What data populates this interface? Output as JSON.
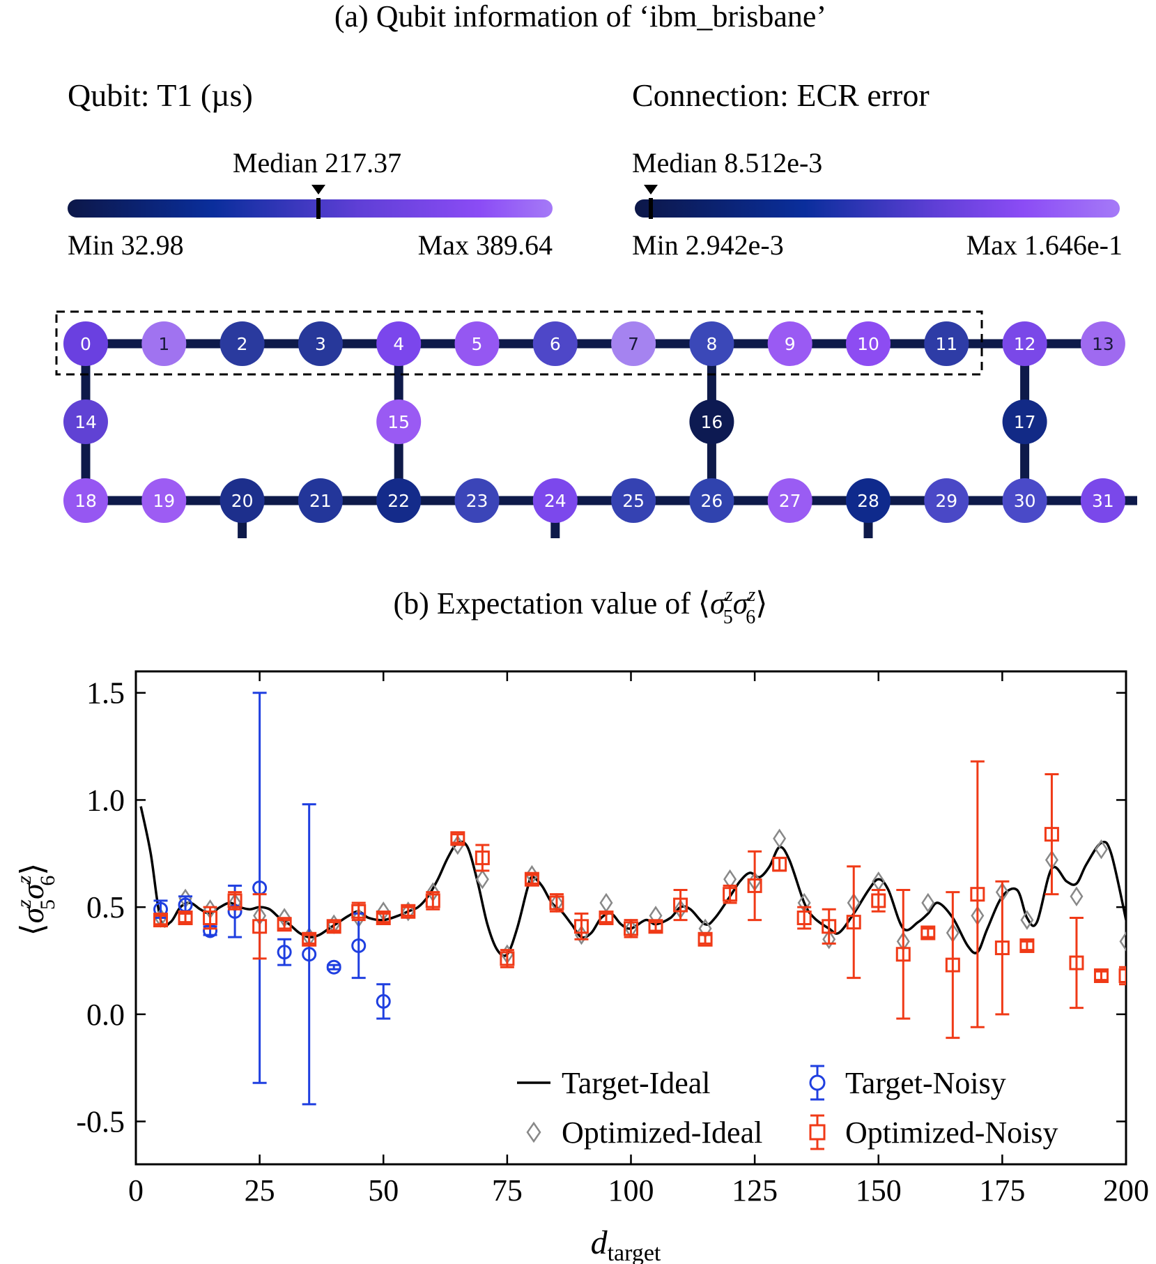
{
  "panel_a": {
    "title": "(a) Qubit information of ‘ibm_brisbane’",
    "qubit_legend": {
      "label": "Qubit: T1 (µs)",
      "median_label": "Median 217.37",
      "min_label": "Min 32.98",
      "max_label": "Max 389.64",
      "min": 32.98,
      "median": 217.37,
      "max": 389.64
    },
    "connection_legend": {
      "label": "Connection: ECR error",
      "median_label": "Median 8.512e-3",
      "min_label": "Min 2.942e-3",
      "max_label": "Max 1.646e-1",
      "min": 0.002942,
      "median": 0.008512,
      "max": 0.1646
    },
    "colorscale": [
      "#0c1748",
      "#0a2e9c",
      "#5f3fd6",
      "#8b4cf5",
      "#a57af7"
    ],
    "qubits": [
      {
        "id": "0",
        "color": "#6a40e0"
      },
      {
        "id": "1",
        "color": "#a073f0"
      },
      {
        "id": "2",
        "color": "#2a3a9e"
      },
      {
        "id": "3",
        "color": "#27389a"
      },
      {
        "id": "4",
        "color": "#7b46ec"
      },
      {
        "id": "5",
        "color": "#9557f2"
      },
      {
        "id": "6",
        "color": "#4e47c8"
      },
      {
        "id": "7",
        "color": "#a583f0"
      },
      {
        "id": "8",
        "color": "#3b48b8"
      },
      {
        "id": "9",
        "color": "#9a5af3"
      },
      {
        "id": "10",
        "color": "#8d4cf2"
      },
      {
        "id": "11",
        "color": "#2e3ca6"
      },
      {
        "id": "12",
        "color": "#7a48e8"
      },
      {
        "id": "13",
        "color": "#9f6af0"
      },
      {
        "id": "14",
        "color": "#6042d4"
      },
      {
        "id": "15",
        "color": "#9a5af3"
      },
      {
        "id": "16",
        "color": "#0d1a52"
      },
      {
        "id": "17",
        "color": "#122a86"
      },
      {
        "id": "18",
        "color": "#9657f2"
      },
      {
        "id": "19",
        "color": "#9d5cf3"
      },
      {
        "id": "20",
        "color": "#1d2f8c"
      },
      {
        "id": "21",
        "color": "#23369a"
      },
      {
        "id": "22",
        "color": "#142b8a"
      },
      {
        "id": "23",
        "color": "#3b45b8"
      },
      {
        "id": "24",
        "color": "#7c48ec"
      },
      {
        "id": "25",
        "color": "#3542b2"
      },
      {
        "id": "26",
        "color": "#3043ae"
      },
      {
        "id": "27",
        "color": "#9a5cf3"
      },
      {
        "id": "28",
        "color": "#0f2a8c"
      },
      {
        "id": "29",
        "color": "#4a48c6"
      },
      {
        "id": "30",
        "color": "#4a4ac8"
      },
      {
        "id": "31",
        "color": "#7a48ea"
      }
    ],
    "highlight": "dashed box around qubits 0–11"
  },
  "chart_data": {
    "type": "line",
    "title": "(b) Expectation value of ⟨σ₅ᶻσ₆ᶻ⟩",
    "title_main": "(b) Expectation value of ",
    "ylabel": "⟨σ₅ᶻσ₆ᶻ⟩",
    "xlabel": "d_target",
    "xlabel_main": "d",
    "xlabel_sub": "target",
    "sigma": "σ",
    "sup": "z",
    "sub5": "5",
    "sub6": "6",
    "lang": "⟨",
    "rang": "⟩",
    "xlim": [
      0,
      200
    ],
    "ylim": [
      -0.7,
      1.6
    ],
    "xticks": [
      "0",
      "25",
      "50",
      "75",
      "100",
      "125",
      "150",
      "175",
      "200"
    ],
    "yticks": [
      "1.5",
      "1.0",
      "0.5",
      "0.0",
      "-0.5"
    ],
    "series": [
      {
        "name": "Target-Ideal",
        "style": "line",
        "color": "#000000",
        "x": [
          1,
          3,
          5,
          7,
          9,
          11,
          13,
          15,
          17,
          19,
          21,
          23,
          25,
          27,
          29,
          31,
          33,
          35,
          37,
          39,
          41,
          43,
          45,
          47,
          50,
          53,
          55,
          57,
          59,
          61,
          63,
          65,
          67,
          69,
          71,
          73,
          75,
          77,
          79,
          80,
          82,
          84,
          86,
          88,
          90,
          92,
          94,
          96,
          98,
          100,
          103,
          105,
          108,
          110,
          112,
          115,
          117,
          120,
          122,
          124,
          126,
          128,
          130,
          132,
          135,
          137,
          140,
          142,
          145,
          148,
          150,
          152,
          155,
          158,
          160,
          162,
          165,
          168,
          170,
          172,
          175,
          178,
          180,
          182,
          185,
          188,
          190,
          192,
          195,
          197,
          200
        ],
        "y": [
          0.97,
          0.75,
          0.44,
          0.43,
          0.5,
          0.52,
          0.49,
          0.47,
          0.5,
          0.52,
          0.5,
          0.49,
          0.5,
          0.49,
          0.45,
          0.42,
          0.38,
          0.36,
          0.37,
          0.4,
          0.43,
          0.46,
          0.48,
          0.45,
          0.44,
          0.46,
          0.48,
          0.5,
          0.55,
          0.63,
          0.73,
          0.8,
          0.78,
          0.62,
          0.42,
          0.3,
          0.28,
          0.4,
          0.58,
          0.64,
          0.6,
          0.52,
          0.48,
          0.42,
          0.36,
          0.38,
          0.45,
          0.47,
          0.42,
          0.4,
          0.44,
          0.42,
          0.45,
          0.5,
          0.49,
          0.42,
          0.45,
          0.55,
          0.62,
          0.66,
          0.64,
          0.69,
          0.78,
          0.72,
          0.52,
          0.45,
          0.4,
          0.38,
          0.47,
          0.58,
          0.63,
          0.58,
          0.4,
          0.43,
          0.47,
          0.52,
          0.45,
          0.32,
          0.29,
          0.4,
          0.55,
          0.58,
          0.45,
          0.43,
          0.68,
          0.62,
          0.61,
          0.7,
          0.8,
          0.75,
          0.44
        ]
      },
      {
        "name": "Optimized-Ideal",
        "style": "diamond",
        "color": "#888888",
        "x": [
          5,
          10,
          15,
          20,
          25,
          30,
          35,
          40,
          45,
          50,
          55,
          60,
          65,
          70,
          75,
          80,
          85,
          90,
          95,
          100,
          105,
          110,
          115,
          120,
          125,
          130,
          135,
          140,
          145,
          150,
          155,
          160,
          165,
          170,
          175,
          180,
          185,
          190,
          195,
          200
        ],
        "y": [
          0.45,
          0.54,
          0.49,
          0.52,
          0.46,
          0.45,
          0.36,
          0.42,
          0.45,
          0.48,
          0.48,
          0.57,
          0.79,
          0.63,
          0.28,
          0.65,
          0.52,
          0.37,
          0.52,
          0.4,
          0.46,
          0.49,
          0.4,
          0.63,
          0.62,
          0.82,
          0.52,
          0.35,
          0.52,
          0.62,
          0.34,
          0.52,
          0.38,
          0.46,
          0.57,
          0.44,
          0.72,
          0.55,
          0.77,
          0.34
        ]
      },
      {
        "name": "Target-Noisy",
        "style": "circle",
        "color": "#1f3fe0",
        "x": [
          5,
          10,
          15,
          20,
          25,
          30,
          35,
          40,
          45,
          50
        ],
        "y": [
          0.49,
          0.51,
          0.39,
          0.48,
          0.59,
          0.29,
          0.28,
          0.22,
          0.32,
          0.06
        ],
        "err": [
          0.04,
          0.04,
          0.02,
          0.12,
          0.91,
          0.06,
          0.7,
          0.01,
          0.15,
          0.08
        ]
      },
      {
        "name": "Optimized-Noisy",
        "style": "square",
        "color": "#f03a17",
        "x": [
          5,
          10,
          15,
          20,
          25,
          30,
          35,
          40,
          45,
          50,
          55,
          60,
          65,
          70,
          75,
          80,
          85,
          90,
          95,
          100,
          105,
          110,
          115,
          120,
          125,
          130,
          135,
          140,
          145,
          150,
          155,
          160,
          165,
          170,
          175,
          180,
          185,
          190,
          195,
          200
        ],
        "y": [
          0.44,
          0.45,
          0.45,
          0.53,
          0.41,
          0.42,
          0.35,
          0.41,
          0.48,
          0.45,
          0.48,
          0.53,
          0.82,
          0.73,
          0.26,
          0.63,
          0.52,
          0.41,
          0.45,
          0.4,
          0.41,
          0.51,
          0.35,
          0.56,
          0.6,
          0.7,
          0.45,
          0.41,
          0.43,
          0.53,
          0.28,
          0.38,
          0.23,
          0.56,
          0.31,
          0.32,
          0.84,
          0.24,
          0.18,
          0.18
        ],
        "err": [
          0.02,
          0.02,
          0.05,
          0.04,
          0.15,
          0.02,
          0.02,
          0.02,
          0.04,
          0.02,
          0.02,
          0.04,
          0.02,
          0.06,
          0.04,
          0.02,
          0.04,
          0.06,
          0.02,
          0.04,
          0.02,
          0.07,
          0.02,
          0.04,
          0.16,
          0.03,
          0.05,
          0.08,
          0.26,
          0.05,
          0.3,
          0.02,
          0.34,
          0.62,
          0.31,
          0.02,
          0.28,
          0.21,
          0.02,
          0.04
        ]
      }
    ],
    "legend": {
      "position": "bottom-right",
      "columns": 2,
      "entries": [
        "Target-Ideal",
        "Target-Noisy",
        "Optimized-Ideal",
        "Optimized-Noisy"
      ]
    }
  }
}
